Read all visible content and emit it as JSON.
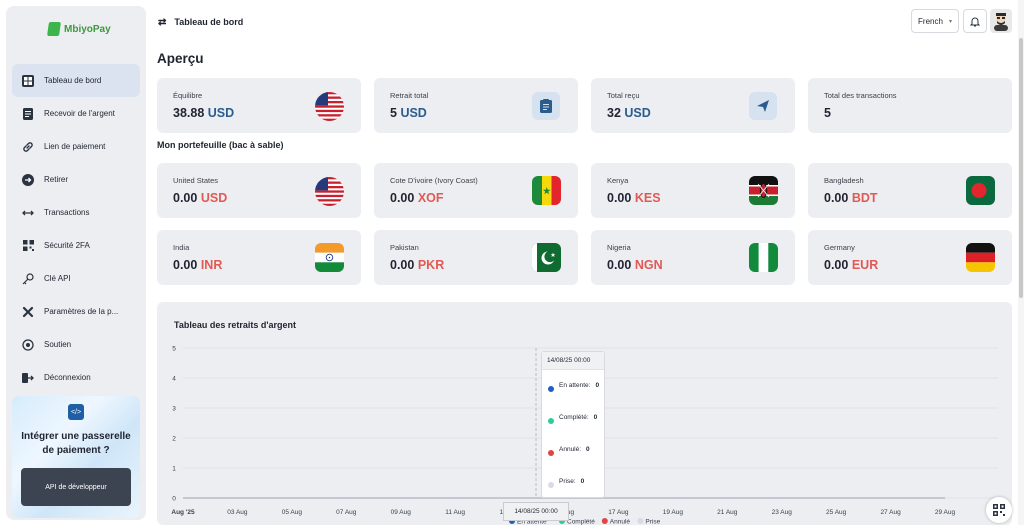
{
  "app": {
    "brand": "MbiyoPay"
  },
  "sidebar": {
    "items": [
      {
        "label": "Tableau de bord",
        "icon": "dashboard-icon",
        "active": true
      },
      {
        "label": "Recevoir de l'argent",
        "icon": "document-icon"
      },
      {
        "label": "Lien de paiement",
        "icon": "link-icon"
      },
      {
        "label": "Retirer",
        "icon": "arrow-right-circle-icon"
      },
      {
        "label": "Transactions",
        "icon": "arrows-horizontal-icon"
      },
      {
        "label": "Sécurité 2FA",
        "icon": "qr-grid-icon"
      },
      {
        "label": "Clé API",
        "icon": "key-icon"
      },
      {
        "label": "Paramètres de la p...",
        "icon": "tools-icon"
      },
      {
        "label": "Soutien",
        "icon": "support-icon"
      },
      {
        "label": "Déconnexion",
        "icon": "logout-icon"
      }
    ],
    "promo": {
      "title": "Intégrer une passerelle de paiement ?",
      "button": "API de développeur"
    }
  },
  "header": {
    "title": "Tableau de bord",
    "language": "French"
  },
  "overview": {
    "title": "Aperçu",
    "cards": [
      {
        "label": "Équilibre",
        "amount": "38.88",
        "currency": "USD",
        "icon": "us-flag"
      },
      {
        "label": "Retrait total",
        "amount": "5",
        "currency": "USD",
        "icon": "clipboard-icon"
      },
      {
        "label": "Total reçu",
        "amount": "32",
        "currency": "USD",
        "icon": "send-icon"
      },
      {
        "label": "Total des transactions",
        "amount": "5",
        "currency": "",
        "icon": ""
      }
    ]
  },
  "wallet": {
    "title": "Mon portefeuille (bac à sable)",
    "cards": [
      {
        "label": "United States",
        "amount": "0.00",
        "currency": "USD",
        "flag": "us"
      },
      {
        "label": "Cote D'ivoire (Ivory Coast)",
        "amount": "0.00",
        "currency": "XOF",
        "flag": "sn"
      },
      {
        "label": "Kenya",
        "amount": "0.00",
        "currency": "KES",
        "flag": "ke"
      },
      {
        "label": "Bangladesh",
        "amount": "0.00",
        "currency": "BDT",
        "flag": "bd"
      },
      {
        "label": "India",
        "amount": "0.00",
        "currency": "INR",
        "flag": "in"
      },
      {
        "label": "Pakistan",
        "amount": "0.00",
        "currency": "PKR",
        "flag": "pk"
      },
      {
        "label": "Nigeria",
        "amount": "0.00",
        "currency": "NGN",
        "flag": "ng"
      },
      {
        "label": "Germany",
        "amount": "0.00",
        "currency": "EUR",
        "flag": "de"
      }
    ]
  },
  "colors": {
    "accent_blue": "#2a5c8e",
    "accent_red": "#e05a55",
    "panel": "#eceef2"
  },
  "chart_data": {
    "type": "line",
    "title": "Tableau des retraits d'argent",
    "categories": [
      "Aug '25",
      "03 Aug",
      "05 Aug",
      "07 Aug",
      "09 Aug",
      "11 Aug",
      "13 Aug",
      "15 Aug",
      "17 Aug",
      "19 Aug",
      "21 Aug",
      "23 Aug",
      "25 Aug",
      "27 Aug",
      "29 Aug"
    ],
    "ylim": [
      0,
      5
    ],
    "yticks": [
      "0",
      "1",
      "2",
      "3",
      "4",
      "5"
    ],
    "series": [
      {
        "name": "En attente",
        "color": "#1e5fc4",
        "values": [
          0,
          0,
          0,
          0,
          0,
          0,
          0,
          0,
          0,
          0,
          0,
          0,
          0,
          0,
          0
        ]
      },
      {
        "name": "Complété",
        "color": "#2ecc9a",
        "values": [
          0,
          0,
          0,
          0,
          0,
          0,
          0,
          0,
          0,
          0,
          0,
          0,
          0,
          0,
          0
        ]
      },
      {
        "name": "Annulé",
        "color": "#e04444",
        "values": [
          0,
          0,
          0,
          0,
          0,
          0,
          0,
          0,
          0,
          0,
          0,
          0,
          0,
          0,
          0
        ]
      },
      {
        "name": "Prise",
        "color": "#d9d9e8",
        "values": [
          0,
          0,
          0,
          0,
          0,
          0,
          0,
          0,
          0,
          0,
          0,
          0,
          0,
          0,
          0
        ]
      }
    ],
    "tooltip": {
      "date": "14/08/25 00:00",
      "rows": [
        {
          "name": "En attente:",
          "value": "0"
        },
        {
          "name": "Complété:",
          "value": "0"
        },
        {
          "name": "Annulé:",
          "value": "0"
        },
        {
          "name": "Prise:",
          "value": "0"
        }
      ]
    },
    "x_hover_label": "14/08/25 00:00",
    "grid": true,
    "legend": "bottom"
  }
}
